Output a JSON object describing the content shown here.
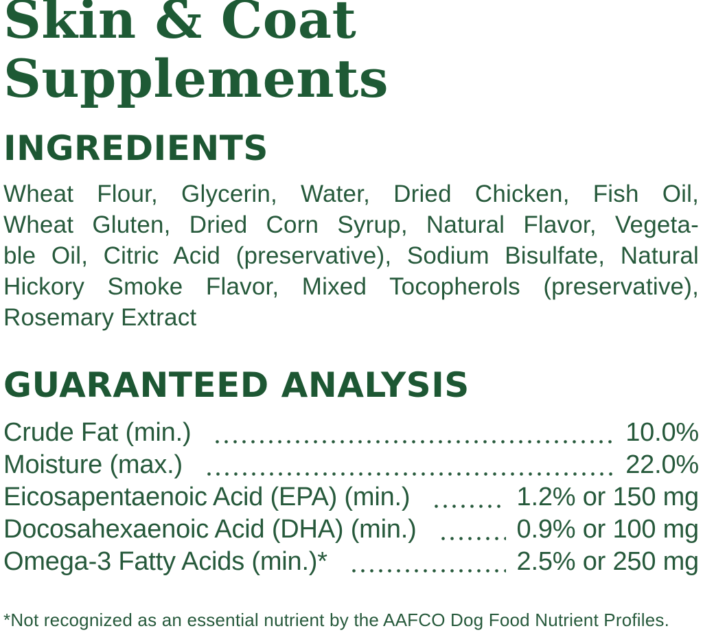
{
  "title": {
    "lines": [
      "Skin & Coat",
      "Supplements"
    ]
  },
  "ingredients": {
    "heading": "INGREDIENTS",
    "lines": [
      "Wheat Flour, Glycerin, Water, Dried Chicken, Fish Oil,",
      "Wheat Gluten, Dried Corn Syrup, Natural Flavor, Vegeta-",
      "ble Oil, Citric Acid (preservative), Sodium Bisulfate, Natural",
      "Hickory Smoke Flavor, Mixed Tocopherols (preservative),",
      "Rosemary Extract"
    ]
  },
  "guaranteed_analysis": {
    "heading": "GUARANTEED ANALYSIS",
    "rows": [
      {
        "label": "Crude Fat (min.)",
        "value": "10.0%"
      },
      {
        "label": "Moisture (max.)",
        "value": "22.0%"
      },
      {
        "label": "Eicosapentaenoic Acid (EPA) (min.)",
        "value": "1.2% or 150 mg"
      },
      {
        "label": "Docosahexaenoic Acid (DHA) (min.)",
        "value": "0.9% or 100 mg"
      },
      {
        "label": "Omega-3 Fatty Acids (min.)*",
        "value": "2.5% or 250 mg"
      }
    ]
  },
  "footnote": "*Not recognized as an essential nutrient by the AAFCO Dog Food Nutrient Profiles.",
  "colors": {
    "title_green": "#1e5a35",
    "heading_green": "#1d5733",
    "body_green": "#26593b",
    "background": "#ffffff"
  }
}
